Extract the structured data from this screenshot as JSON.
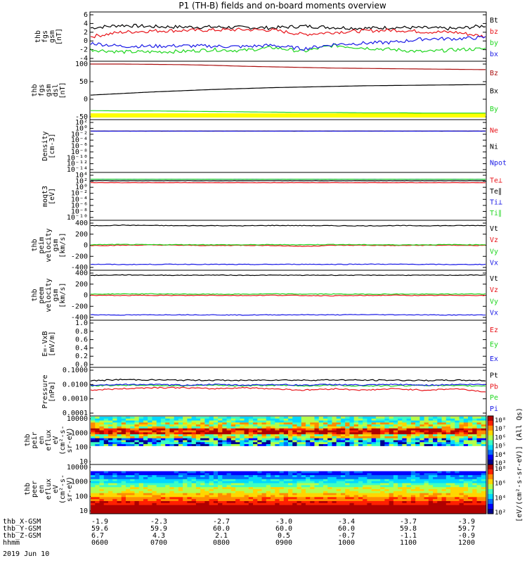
{
  "title": "P1  (TH-B) fields and on-board moments overview",
  "date_label": "2019 Jun 10",
  "colors": {
    "black": "#000000",
    "red": "#e8141a",
    "green": "#1fd61f",
    "blue": "#1a1ae6",
    "yellow": "#ffff00",
    "dark_red": "#aa1010"
  },
  "chart_data": [
    {
      "type": "line",
      "ylabel": [
        "thb",
        "fgs",
        "gsm",
        "[nT]"
      ],
      "yticks": [
        "6",
        "4",
        "2",
        "0",
        "-2",
        "-4"
      ],
      "ylim": [
        -4,
        6
      ],
      "series": [
        {
          "name": "Bt",
          "color": "#000000",
          "values": [
            3.0,
            3.6,
            3.3,
            3.2,
            3.2,
            3.1,
            3.0,
            3.4,
            3.1,
            2.9,
            3.1,
            3.0,
            2.8,
            3.5
          ]
        },
        {
          "name": "bz",
          "color": "#e8141a",
          "values": [
            1.0,
            2.0,
            2.3,
            2.4,
            2.5,
            2.6,
            2.5,
            1.5,
            2.0,
            2.3,
            2.5,
            2.1,
            2.0,
            1.0
          ]
        },
        {
          "name": "by",
          "color": "#1fd61f",
          "values": [
            -2.0,
            -2.5,
            -2.5,
            -2.4,
            -2.0,
            -2.2,
            -1.5,
            -2.4,
            -1.0,
            -1.6,
            -2.0,
            -2.5,
            -2.0,
            -1.8
          ]
        },
        {
          "name": "bx",
          "color": "#1a1ae6",
          "values": [
            -0.5,
            -1.2,
            -1.2,
            -1.1,
            -1.2,
            -1.3,
            -1.0,
            -1.8,
            -0.8,
            -0.5,
            -0.3,
            0.5,
            0.5,
            0.8
          ]
        }
      ]
    },
    {
      "type": "line",
      "ylabel": [
        "thb",
        "fgs",
        "gsm",
        "dsl",
        "[nT]"
      ],
      "yticks": [
        "100",
        "50",
        "0",
        "-50"
      ],
      "ylim": [
        -70,
        100
      ],
      "series": [
        {
          "name": "Bz",
          "color": "#aa1010",
          "values": [
            100,
            100,
            99,
            98,
            96,
            93,
            91,
            89,
            87,
            86,
            85,
            84,
            83,
            82
          ]
        },
        {
          "name": "Bx",
          "color": "#000000",
          "values": [
            0,
            5,
            10,
            14,
            18,
            21,
            24,
            26,
            28,
            30,
            31,
            32,
            33,
            34
          ]
        },
        {
          "name": "By",
          "color": "#1fd61f",
          "values": [
            -50,
            -51,
            -51,
            -52,
            -53,
            -54,
            -55,
            -56,
            -56,
            -57,
            -57,
            -58,
            -58,
            -58
          ]
        }
      ],
      "band": {
        "color": "#ffff00",
        "label": ""
      }
    },
    {
      "type": "line",
      "ylabel": [
        "Density",
        "[cm-3]"
      ],
      "yticks": [
        "10²",
        "10⁰",
        "10⁻²",
        "10⁻⁴",
        "10⁻⁶",
        "10⁻⁸",
        "10⁻¹⁰",
        "10⁻¹²",
        "10⁻¹⁴"
      ],
      "log": true,
      "series": [
        {
          "name": "Ne",
          "color": "#e8141a",
          "values": [
            0.5,
            0.5,
            0.5,
            0.5,
            0.5,
            0.5,
            0.5,
            0.5,
            0.5,
            0.5,
            0.5,
            0.5,
            0.5,
            0.5
          ]
        },
        {
          "name": "Ni",
          "color": "#000000",
          "values": [
            0.5,
            0.5,
            0.5,
            0.5,
            0.5,
            0.5,
            0.5,
            0.5,
            0.5,
            0.5,
            0.5,
            0.5,
            0.5,
            0.5
          ]
        },
        {
          "name": "Npot",
          "color": "#1a1ae6",
          "values": [
            0.5,
            0.5,
            0.5,
            0.5,
            0.5,
            0.5,
            0.5,
            0.5,
            0.5,
            0.5,
            0.5,
            0.5,
            0.5,
            0.5
          ]
        }
      ]
    },
    {
      "type": "line",
      "ylabel": [
        "moqt3",
        "[eV]"
      ],
      "yticks": [
        "10⁴",
        "10²",
        "10⁰",
        "10⁻²",
        "10⁻⁴",
        "10⁻⁶",
        "10⁻⁸",
        "10⁻¹⁰"
      ],
      "log": true,
      "series": [
        {
          "name": "Te⊥",
          "color": "#e8141a",
          "values": [
            150,
            150,
            150,
            150,
            150,
            150,
            150,
            150,
            150,
            150,
            150,
            150,
            150,
            150
          ]
        },
        {
          "name": "Te∥",
          "color": "#000000",
          "values": [
            800,
            800,
            800,
            800,
            800,
            800,
            800,
            800,
            800,
            800,
            800,
            800,
            800,
            800
          ]
        },
        {
          "name": "Ti⊥",
          "color": "#1a1ae6",
          "values": [
            3000,
            3000,
            3000,
            3000,
            3000,
            3000,
            3000,
            3000,
            3000,
            3000,
            3000,
            3000,
            3000,
            3000
          ]
        },
        {
          "name": "Ti∥",
          "color": "#1fd61f",
          "values": [
            3000,
            3000,
            3000,
            3000,
            3000,
            3000,
            3000,
            3000,
            3000,
            3000,
            3000,
            3000,
            3000,
            3000
          ]
        }
      ]
    },
    {
      "type": "line",
      "ylabel": [
        "thb",
        "peim",
        "velocity",
        "gsm",
        "[km/s]"
      ],
      "yticks": [
        "400",
        "200",
        "0",
        "-200",
        "-400"
      ],
      "ylim": [
        -420,
        420
      ],
      "series": [
        {
          "name": "Vt",
          "color": "#000000",
          "values": [
            370,
            380,
            375,
            370,
            372,
            368,
            375,
            372,
            370,
            368,
            372,
            370,
            372,
            375
          ]
        },
        {
          "name": "Vz",
          "color": "#e8141a",
          "values": [
            -5,
            0,
            5,
            0,
            -5,
            0,
            -5,
            -20,
            0,
            0,
            -5,
            0,
            0,
            -5
          ]
        },
        {
          "name": "Vy",
          "color": "#1fd61f",
          "values": [
            10,
            15,
            10,
            12,
            10,
            8,
            12,
            10,
            15,
            10,
            8,
            10,
            12,
            10
          ]
        },
        {
          "name": "Vx",
          "color": "#1a1ae6",
          "values": [
            -360,
            -365,
            -362,
            -360,
            -362,
            -365,
            -362,
            -360,
            -362,
            -358,
            -360,
            -362,
            -365,
            -362
          ]
        }
      ]
    },
    {
      "type": "line",
      "ylabel": [
        "thb",
        "peem",
        "velocity",
        "gsm",
        "[km/s]"
      ],
      "yticks": [
        "400",
        "200",
        "0",
        "-200",
        "-400"
      ],
      "ylim": [
        -420,
        420
      ],
      "series": [
        {
          "name": "Vt",
          "color": "#000000",
          "values": [
            375,
            385,
            380,
            378,
            382,
            378,
            380,
            378,
            380,
            378,
            380,
            378,
            380,
            382
          ]
        },
        {
          "name": "Vz",
          "color": "#e8141a",
          "values": [
            0,
            -5,
            0,
            -5,
            0,
            -5,
            0,
            -5,
            -10,
            -5,
            0,
            -5,
            0,
            -5
          ]
        },
        {
          "name": "Vy",
          "color": "#1fd61f",
          "values": [
            20,
            25,
            25,
            22,
            20,
            20,
            25,
            22,
            22,
            20,
            22,
            20,
            22,
            25
          ]
        },
        {
          "name": "Vx",
          "color": "#1a1ae6",
          "values": [
            -370,
            -375,
            -372,
            -370,
            -372,
            -375,
            -372,
            -370,
            -372,
            -368,
            -370,
            -372,
            -375,
            -372
          ]
        }
      ]
    },
    {
      "type": "line",
      "ylabel": [
        "E=-VxB",
        "[mV/m]"
      ],
      "yticks": [
        "1.0",
        "0.8",
        "0.6",
        "0.4",
        "0.2",
        "0.0"
      ],
      "ylim": [
        0,
        1
      ],
      "series": [
        {
          "name": "Ez",
          "color": "#e8141a",
          "values": []
        },
        {
          "name": "Ey",
          "color": "#1fd61f",
          "values": []
        },
        {
          "name": "Ex",
          "color": "#1a1ae6",
          "values": []
        }
      ]
    },
    {
      "type": "line",
      "ylabel": [
        "Pressure",
        "[nPa]"
      ],
      "yticks": [
        "0.1000",
        "0.0100",
        "0.0010",
        "0.0001"
      ],
      "log": true,
      "series": [
        {
          "name": "Pt",
          "color": "#000000",
          "values": [
            0.018,
            0.022,
            0.021,
            0.02,
            0.02,
            0.019,
            0.021,
            0.02,
            0.021,
            0.02,
            0.02,
            0.019,
            0.02,
            0.019
          ]
        },
        {
          "name": "Pb",
          "color": "#e8141a",
          "values": [
            0.004,
            0.005,
            0.006,
            0.006,
            0.005,
            0.006,
            0.005,
            0.004,
            0.005,
            0.004,
            0.005,
            0.004,
            0.005,
            0.003
          ]
        },
        {
          "name": "Pe",
          "color": "#1fd61f",
          "values": [
            0.008,
            0.009,
            0.009,
            0.008,
            0.009,
            0.008,
            0.009,
            0.008,
            0.009,
            0.008,
            0.008,
            0.009,
            0.008,
            0.008
          ]
        },
        {
          "name": "Pi",
          "color": "#1a1ae6",
          "values": [
            0.009,
            0.01,
            0.01,
            0.009,
            0.01,
            0.009,
            0.01,
            0.009,
            0.01,
            0.009,
            0.01,
            0.009,
            0.01,
            0.01
          ]
        }
      ]
    },
    {
      "type": "heatmap",
      "ylabel": [
        "thb",
        "peir",
        "en",
        "eflux",
        "eV",
        "(cm²-s-",
        "sr-eV)"
      ],
      "yticks": [
        "10000",
        "1000",
        "100",
        "10"
      ]
    },
    {
      "type": "heatmap",
      "ylabel": [
        "thb",
        "peer",
        "en",
        "eflux",
        "eV",
        "(cm²-s-",
        "sr-eV)"
      ],
      "yticks": [
        "10000",
        "1000",
        "100",
        "10"
      ]
    }
  ],
  "colorbars": [
    {
      "label": "[eV/(cm²-s-sr-eV)] (All Qs)",
      "ticks": [
        "10⁸",
        "10⁷",
        "10⁶",
        "10⁵",
        "10⁴",
        "10³"
      ]
    },
    {
      "label": "[eV/(cm²-s-sr-eV)] (All Qs)",
      "ticks": [
        "10⁸",
        "10⁶",
        "10⁴",
        "10²"
      ]
    }
  ],
  "xaxis": {
    "rows": [
      {
        "label": "thb_X-GSM",
        "values": [
          "-1.9",
          "-2.3",
          "-2.7",
          "-3.0",
          "-3.4",
          "-3.7",
          "-3.9"
        ]
      },
      {
        "label": "thb_Y-GSM",
        "values": [
          "59.6",
          "59.9",
          "60.0",
          "60.0",
          "60.0",
          "59.8",
          "59.7"
        ]
      },
      {
        "label": "thb_Z-GSM",
        "values": [
          "6.7",
          "4.3",
          "2.1",
          "0.5",
          "-0.7",
          "-1.1",
          "-0.9"
        ]
      },
      {
        "label": "hhmm",
        "values": [
          "0600",
          "0700",
          "0800",
          "0900",
          "1000",
          "1100",
          "1200"
        ]
      }
    ]
  }
}
